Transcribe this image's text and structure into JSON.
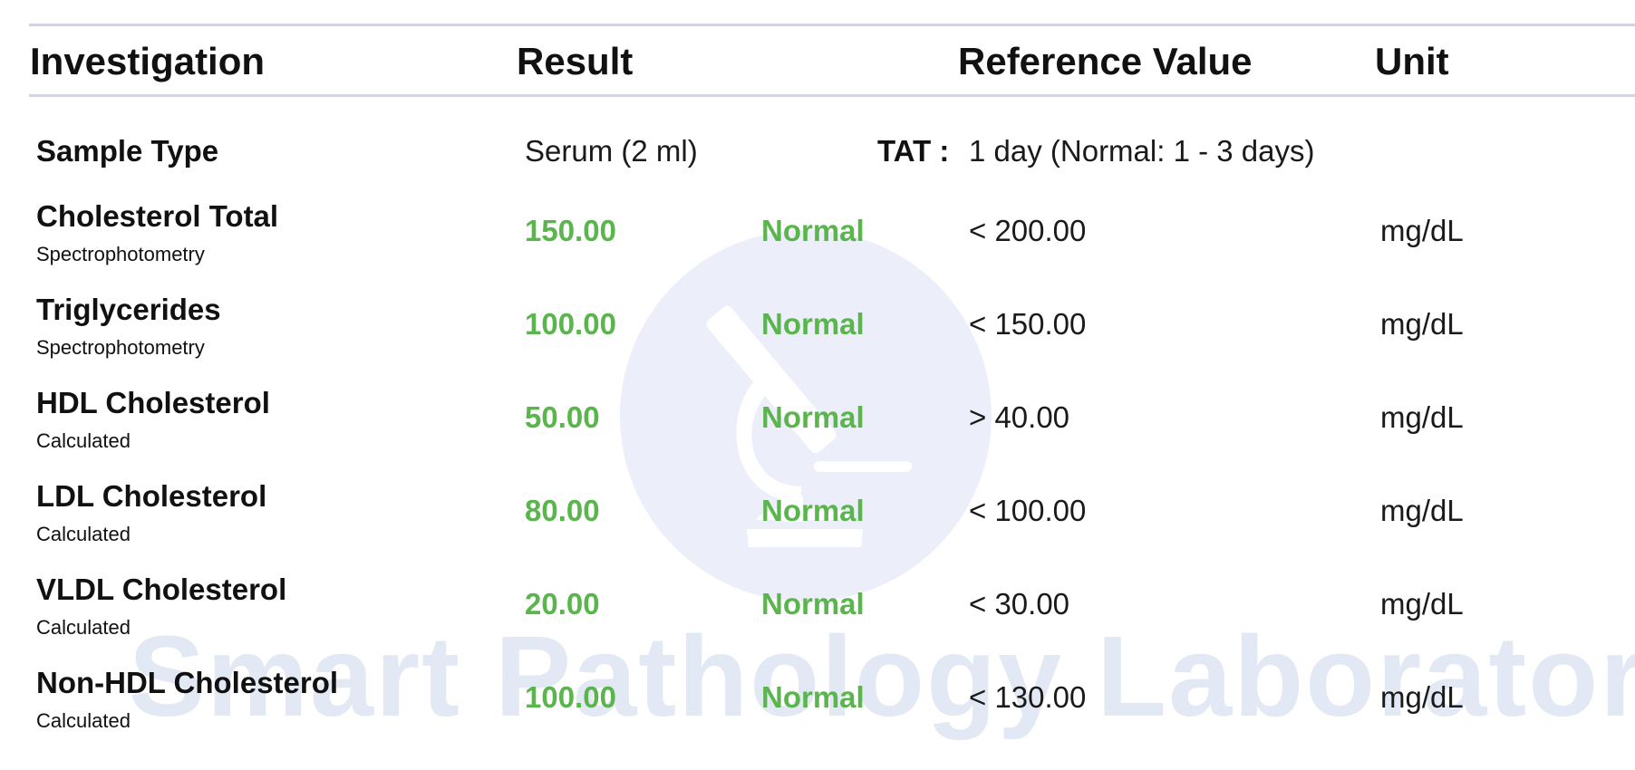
{
  "header": {
    "investigation": "Investigation",
    "result": "Result",
    "reference_value": "Reference Value",
    "unit": "Unit"
  },
  "sample": {
    "label": "Sample Type",
    "value": "Serum (2 ml)",
    "tat_label": "TAT :",
    "tat_value": "1 day  (Normal: 1 - 3 days)"
  },
  "rows": [
    {
      "name": "Cholesterol Total",
      "method": "Spectrophotometry",
      "result": "150.00",
      "flag": "Normal",
      "reference": "< 200.00",
      "unit": "mg/dL"
    },
    {
      "name": "Triglycerides",
      "method": "Spectrophotometry",
      "result": "100.00",
      "flag": "Normal",
      "reference": "< 150.00",
      "unit": "mg/dL"
    },
    {
      "name": "HDL Cholesterol",
      "method": "Calculated",
      "result": "50.00",
      "flag": "Normal",
      "reference": "> 40.00",
      "unit": "mg/dL"
    },
    {
      "name": "LDL Cholesterol",
      "method": "Calculated",
      "result": "80.00",
      "flag": "Normal",
      "reference": "< 100.00",
      "unit": "mg/dL"
    },
    {
      "name": "VLDL Cholesterol",
      "method": "Calculated",
      "result": "20.00",
      "flag": "Normal",
      "reference": "< 30.00",
      "unit": "mg/dL"
    },
    {
      "name": "Non-HDL Cholesterol",
      "method": "Calculated",
      "result": "100.00",
      "flag": "Normal",
      "reference": "< 130.00",
      "unit": "mg/dL"
    }
  ],
  "watermark": {
    "text": "Smart Pathology Laboratory",
    "icon": "microscope-icon"
  },
  "colors": {
    "normal_green": "#5ab54d",
    "rule": "#d2d3e3",
    "watermark": "#e3e8f5"
  }
}
